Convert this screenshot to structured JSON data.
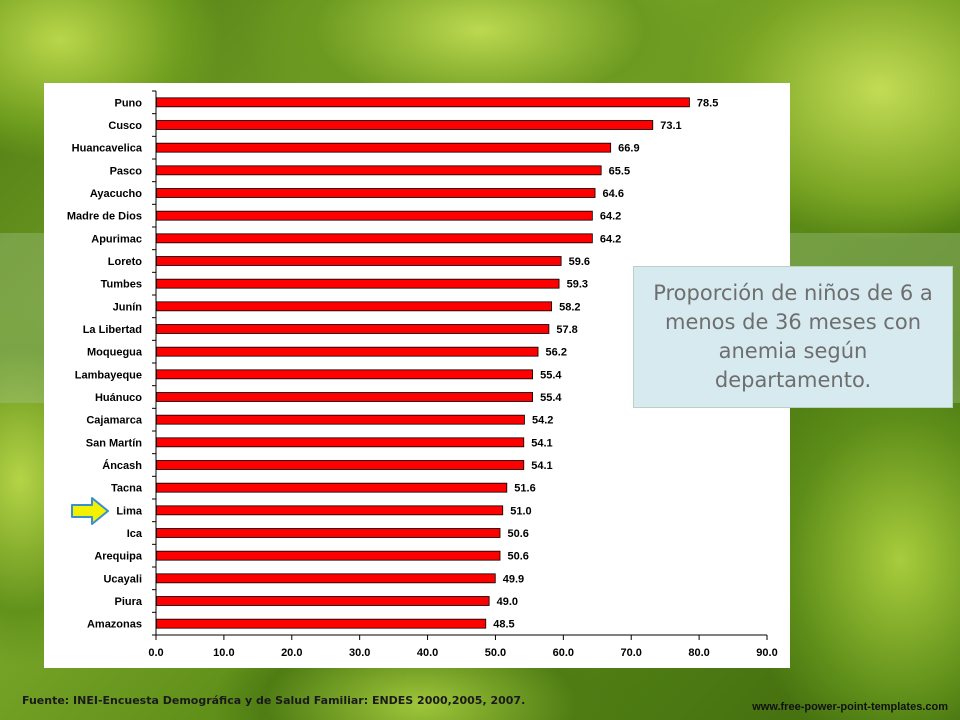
{
  "chart_data": {
    "type": "bar",
    "orientation": "horizontal",
    "title": "Proporción de niños de 6 a menos de 36 meses con anemia según departamento.",
    "categories": [
      "Puno",
      "Cusco",
      "Huancavelica",
      "Pasco",
      "Ayacucho",
      "Madre de Dios",
      "Apurimac",
      "Loreto",
      "Tumbes",
      "Junín",
      "La Libertad",
      "Moquegua",
      "Lambayeque",
      "Huánuco",
      "Cajamarca",
      "San Martín",
      "Áncash",
      "Tacna",
      "Lima",
      "Ica",
      "Arequipa",
      "Ucayali",
      "Piura",
      "Amazonas"
    ],
    "values": [
      78.5,
      73.1,
      66.9,
      65.5,
      64.6,
      64.2,
      64.2,
      59.6,
      59.3,
      58.2,
      57.8,
      56.2,
      55.4,
      55.4,
      54.2,
      54.1,
      54.1,
      51.6,
      51.0,
      50.6,
      50.6,
      49.9,
      49.0,
      48.5
    ],
    "value_labels": [
      "78.5",
      "73.1",
      "66.9",
      "65.5",
      "64.6",
      "64.2",
      "64.2",
      "59.6",
      "59.3",
      "58.2",
      "57.8",
      "56.2",
      "55.4",
      "55.4",
      "54.2",
      "54.1",
      "54.1",
      "51.6",
      "51.0",
      "50.6",
      "50.6",
      "49.9",
      "49.0",
      "48.5"
    ],
    "xlim": [
      0,
      90
    ],
    "x_ticks": [
      "0.0",
      "10.0",
      "20.0",
      "30.0",
      "40.0",
      "50.0",
      "60.0",
      "70.0",
      "80.0",
      "90.0"
    ],
    "highlighted_category": "Lima",
    "bar_color": "#ff0000",
    "grid": false
  },
  "caption": "Proporción de niños de 6 a menos de 36 meses con anemia según departamento.",
  "source": "Fuente: INEI-Encuesta Demográfica y de Salud Familiar: ENDES 2000,2005, 2007.",
  "website": "www.free-power-point-templates.com",
  "arrow_color": "#f2f200"
}
